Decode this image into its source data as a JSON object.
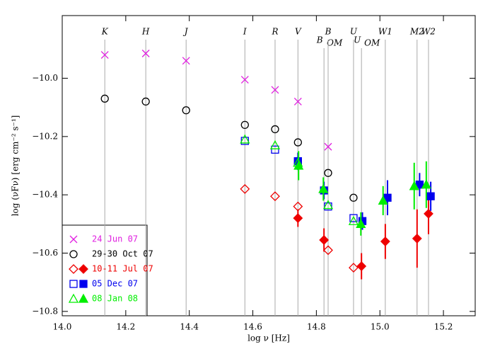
{
  "chart_data": {
    "type": "scatter",
    "xlabel": "log ν [Hz]",
    "ylabel": "log (νFν) [erg cm⁻² s⁻¹]",
    "xlim": [
      14.0,
      15.3
    ],
    "ylim": [
      -10.815,
      -9.785
    ],
    "xticks": [
      {
        "value": 14.0,
        "label": "14.0"
      },
      {
        "value": 14.2,
        "label": "14.2"
      },
      {
        "value": 14.4,
        "label": "14.4"
      },
      {
        "value": 14.6,
        "label": "14.6"
      },
      {
        "value": 14.8,
        "label": "14.8"
      },
      {
        "value": 15.0,
        "label": "15.0"
      },
      {
        "value": 15.2,
        "label": "15.2"
      }
    ],
    "yticks": [
      {
        "value": -10.0,
        "label": "−10.0"
      },
      {
        "value": -10.2,
        "label": "−10.2"
      },
      {
        "value": -10.4,
        "label": "−10.4"
      },
      {
        "value": -10.6,
        "label": "−10.6"
      },
      {
        "value": -10.8,
        "label": "−10.8"
      }
    ],
    "filters": [
      {
        "name": "K",
        "x": 14.134
      },
      {
        "name": "H",
        "x": 14.263
      },
      {
        "name": "J",
        "x": 14.39
      },
      {
        "name": "I",
        "x": 14.575
      },
      {
        "name": "R",
        "x": 14.67
      },
      {
        "name": "V",
        "x": 14.742
      },
      {
        "name": "B",
        "sub": "OM",
        "x": 14.824
      },
      {
        "name": "B",
        "x": 14.837
      },
      {
        "name": "U",
        "x": 14.917
      },
      {
        "name": "U",
        "sub": "OM",
        "x": 14.942
      },
      {
        "name": "W1",
        "x": 15.017
      },
      {
        "name": "M2",
        "x": 15.117
      },
      {
        "name": "W2",
        "x": 15.153
      }
    ],
    "series": [
      {
        "name": "24 Jun 07",
        "color": "#e020e0",
        "marker": "cross",
        "points": {
          "x": [
            14.134,
            14.263,
            14.39,
            14.575,
            14.67,
            14.742,
            14.837
          ],
          "values": [
            -9.92,
            -9.915,
            -9.94,
            -10.005,
            -10.04,
            -10.08,
            -10.235
          ]
        }
      },
      {
        "name": "29-30 Oct 07",
        "color": "#000000",
        "marker": "circle",
        "points": {
          "x": [
            14.134,
            14.263,
            14.39,
            14.575,
            14.67,
            14.742,
            14.837,
            14.917
          ],
          "values": [
            -10.07,
            -10.08,
            -10.11,
            -10.16,
            -10.175,
            -10.22,
            -10.325,
            -10.41
          ]
        }
      },
      {
        "name": "10-11 Jul 07",
        "color": "#ee0000",
        "marker": "diamond",
        "points": {
          "x": [
            14.575,
            14.67,
            14.742,
            14.837,
            14.917
          ],
          "values": [
            -10.38,
            -10.405,
            -10.44,
            -10.59,
            -10.65
          ]
        },
        "filled": {
          "x": [
            14.742,
            14.824,
            14.942,
            15.017,
            15.117,
            15.153
          ],
          "values": [
            -10.48,
            -10.555,
            -10.645,
            -10.56,
            -10.55,
            -10.465
          ],
          "errors": [
            0.03,
            0.04,
            0.045,
            0.06,
            0.1,
            0.07
          ]
        }
      },
      {
        "name": "05 Dec 07",
        "color": "#0000ee",
        "marker": "square",
        "points": {
          "x": [
            14.575,
            14.67,
            14.742,
            14.837,
            14.917
          ],
          "values": [
            -10.215,
            -10.245,
            -10.285,
            -10.44,
            -10.48
          ]
        },
        "filled": {
          "x": [
            14.742,
            14.824,
            14.945,
            15.024,
            15.125,
            15.16
          ],
          "values": [
            -10.285,
            -10.385,
            -10.49,
            -10.41,
            -10.365,
            -10.405
          ],
          "errors": [
            0.03,
            0.03,
            0.03,
            0.06,
            0.04,
            0.05
          ]
        }
      },
      {
        "name": "08 Jan 08",
        "color": "#00ee00",
        "marker": "triangle",
        "points": {
          "x": [
            14.575,
            14.67,
            14.742,
            14.837,
            14.917
          ],
          "values": [
            -10.21,
            -10.23,
            -10.29,
            -10.435,
            -10.49
          ]
        },
        "filled": {
          "x": [
            14.744,
            14.822,
            14.94,
            15.01,
            15.108,
            15.146
          ],
          "values": [
            -10.3,
            -10.38,
            -10.5,
            -10.42,
            -10.37,
            -10.365
          ],
          "errors": [
            0.05,
            0.04,
            0.04,
            0.05,
            0.08,
            0.08
          ]
        }
      }
    ]
  }
}
